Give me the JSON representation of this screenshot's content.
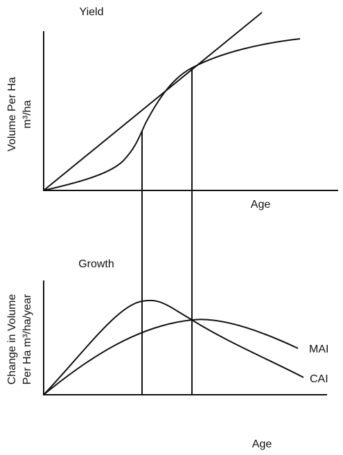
{
  "top": {
    "title": "Yield",
    "y_label": [
      "Volume Per Ha",
      "m³/ha"
    ],
    "x_label": "Age"
  },
  "bottom": {
    "title": "Growth",
    "y_label": [
      "Change in Volume",
      "Per Ha m³/ha/year"
    ],
    "x_label": "Age",
    "curves": [
      "MAI",
      "CAI"
    ]
  }
}
